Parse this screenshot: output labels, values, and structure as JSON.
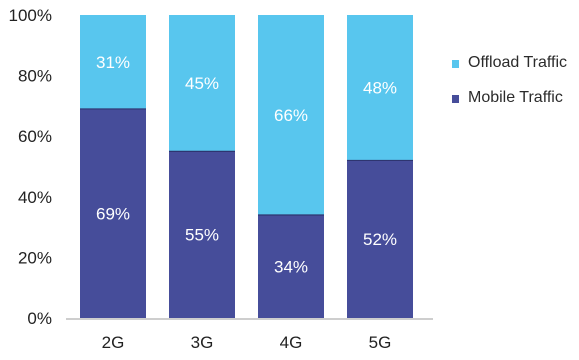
{
  "chart_data": {
    "type": "bar",
    "stacked": true,
    "percent": true,
    "categories": [
      "2G",
      "3G",
      "4G",
      "5G"
    ],
    "series": [
      {
        "name": "Mobile Traffic",
        "values": [
          69,
          55,
          34,
          52
        ],
        "color": "#464d9a"
      },
      {
        "name": "Offload Traffic",
        "values": [
          31,
          45,
          66,
          48
        ],
        "color": "#58c6ee"
      }
    ],
    "data_labels": {
      "mobile": [
        "69%",
        "55%",
        "34%",
        "52%"
      ],
      "offload": [
        "31%",
        "45%",
        "66%",
        "48%"
      ]
    },
    "y_ticks": [
      "0%",
      "20%",
      "40%",
      "60%",
      "80%",
      "100%"
    ],
    "ylim": [
      0,
      100
    ],
    "legend": {
      "placement": "right",
      "items": [
        "Offload Traffic",
        "Mobile Traffic"
      ]
    },
    "grid": false
  }
}
